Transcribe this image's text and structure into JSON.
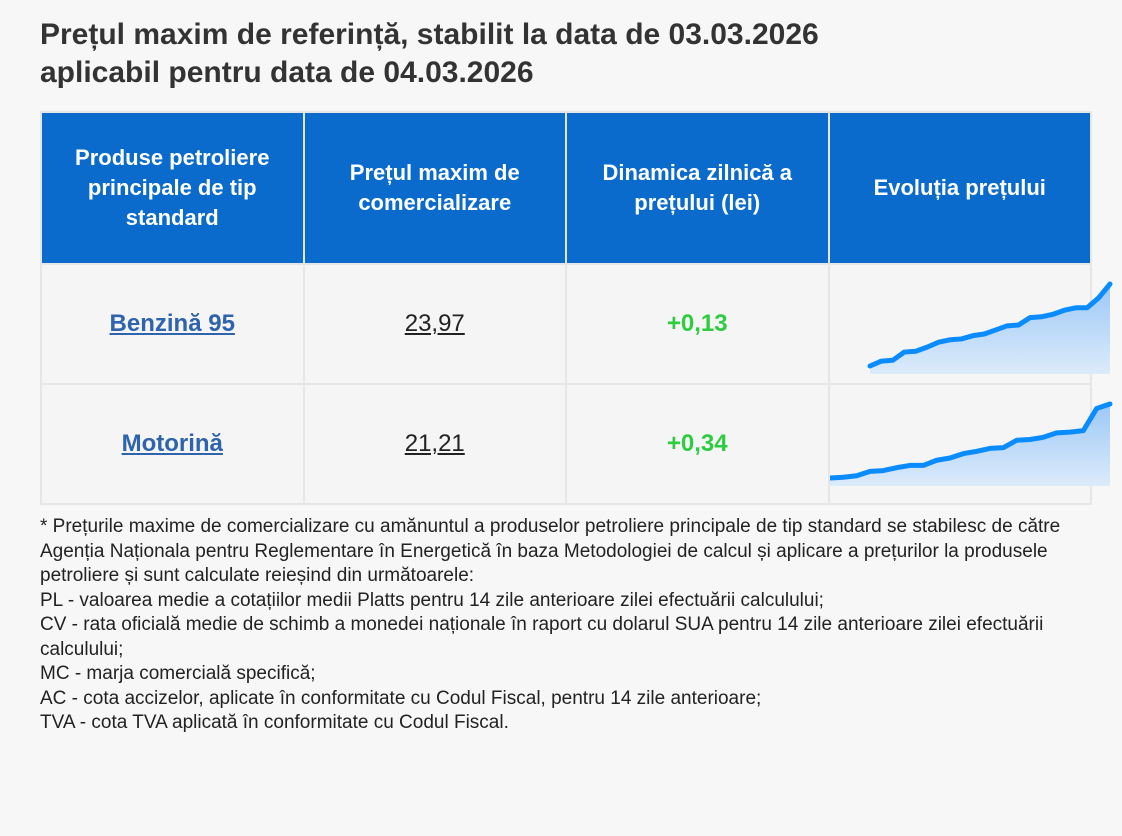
{
  "title": {
    "line1": "Prețul maxim de referință, stabilit la data de 03.03.2026",
    "line2": "aplicabil pentru data de 04.03.2026"
  },
  "table": {
    "headers": [
      "Produse petroliere principale de tip standard",
      "Prețul maxim de comercializare",
      "Dinamica zilnică a prețului (lei)",
      "Evoluția prețului"
    ],
    "rows": [
      {
        "product": "Benzină 95",
        "price": "23,97",
        "change": "+0,13",
        "trend_relative": [
          0,
          0.06,
          0.07,
          0.17,
          0.18,
          0.23,
          0.29,
          0.32,
          0.33,
          0.37,
          0.39,
          0.44,
          0.49,
          0.5,
          0.59,
          0.6,
          0.63,
          0.68,
          0.71,
          0.71,
          0.83,
          1
        ]
      },
      {
        "product": "Motorină",
        "price": "21,21",
        "change": "+0,34",
        "trend_relative": [
          0,
          0.01,
          0.03,
          0.09,
          0.1,
          0.14,
          0.17,
          0.17,
          0.24,
          0.27,
          0.33,
          0.36,
          0.4,
          0.41,
          0.51,
          0.52,
          0.55,
          0.61,
          0.62,
          0.64,
          0.94,
          1
        ]
      }
    ]
  },
  "colors": {
    "header_bg": "#0a6bcc",
    "link": "#2e63ad",
    "positive": "#2ecc40",
    "spark_line": "#0a8cff"
  },
  "notes": [
    "* Prețurile maxime de comercializare cu amănuntul a produselor petroliere principale de tip standard se stabilesc de către Agenția Naționala pentru Reglementare în Energetică în baza Metodologiei de calcul și aplicare a prețurilor la produsele petroliere și sunt calculate reieșind din următoarele:",
    "PL - valoarea medie a cotațiilor medii Platts pentru 14 zile anterioare zilei efectuării calculului;",
    "CV - rata oficială medie de schimb a monedei naționale în raport cu dolarul SUA pentru 14 zile anterioare zilei efectuării calculului;",
    "MC - marja comercială specifică;",
    "AC - cota accizelor, aplicate în conformitate cu Codul Fiscal, pentru 14 zile anterioare;",
    "TVA - cota TVA aplicată în conformitate cu Codul Fiscal."
  ]
}
